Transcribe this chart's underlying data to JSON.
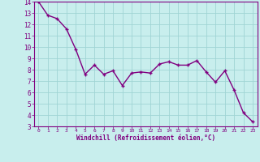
{
  "x": [
    0,
    1,
    2,
    3,
    4,
    5,
    6,
    7,
    8,
    9,
    10,
    11,
    12,
    13,
    14,
    15,
    16,
    17,
    18,
    19,
    20,
    21,
    22,
    23
  ],
  "y": [
    14.0,
    12.8,
    12.5,
    11.6,
    9.8,
    7.6,
    8.4,
    7.6,
    7.9,
    6.6,
    7.7,
    7.8,
    7.7,
    8.5,
    8.7,
    8.4,
    8.4,
    8.8,
    7.8,
    6.9,
    7.9,
    6.2,
    4.2,
    3.4
  ],
  "line_color": "#800080",
  "marker": "+",
  "marker_size": 3,
  "bg_color": "#c8eeed",
  "grid_color": "#a0d4d4",
  "xlabel": "Windchill (Refroidissement éolien,°C)",
  "xlabel_color": "#800080",
  "tick_color": "#800080",
  "ylim": [
    3,
    14
  ],
  "xlim": [
    -0.5,
    23.5
  ],
  "yticks": [
    3,
    4,
    5,
    6,
    7,
    8,
    9,
    10,
    11,
    12,
    13,
    14
  ],
  "xticks": [
    0,
    1,
    2,
    3,
    4,
    5,
    6,
    7,
    8,
    9,
    10,
    11,
    12,
    13,
    14,
    15,
    16,
    17,
    18,
    19,
    20,
    21,
    22,
    23
  ],
  "line_width": 1.0
}
